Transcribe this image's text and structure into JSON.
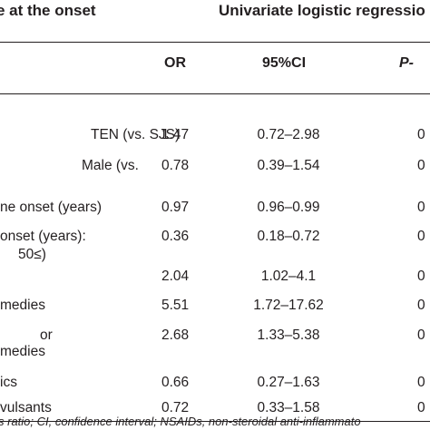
{
  "header": {
    "left_title": "e at the onset",
    "left_title_line2": "",
    "right_title": "Univariate logistic regressio"
  },
  "columns": {
    "or": "OR",
    "ci": "95%CI",
    "p": "P-"
  },
  "rows": [
    {
      "label": "TEN (vs. SJS)",
      "or": "1.47",
      "ci": "0.72–2.98",
      "p": "0"
    },
    {
      "label": "Male (vs.",
      "or": "0.78",
      "ci": "0.39–1.54",
      "p": "0"
    },
    {
      "label": "ne onset (years)",
      "or": "0.97",
      "ci": "0.96–0.99",
      "p": "0"
    },
    {
      "label": "onset (years):",
      "or": "0.36",
      "ci": "0.18–0.72",
      "p": "0"
    },
    {
      "label": "50≤)",
      "or": "",
      "ci": "",
      "p": ""
    },
    {
      "label": "",
      "or": "2.04",
      "ci": "1.02–4.1",
      "p": "0"
    },
    {
      "label": "medies",
      "or": "5.51",
      "ci": "1.72–17.62",
      "p": "0"
    },
    {
      "label": "or",
      "or": "2.68",
      "ci": "1.33–5.38",
      "p": "0"
    },
    {
      "label": "medies",
      "or": "",
      "ci": "",
      "p": ""
    },
    {
      "label": "ics",
      "or": "0.66",
      "ci": "0.27–1.63",
      "p": "0"
    },
    {
      "label": "vulsants",
      "or": "0.72",
      "ci": "0.33–1.58",
      "p": "0"
    }
  ],
  "footnote": "s ratio; CI, confidence interval; NSAIDs, non-steroidal anti-inflammato"
}
